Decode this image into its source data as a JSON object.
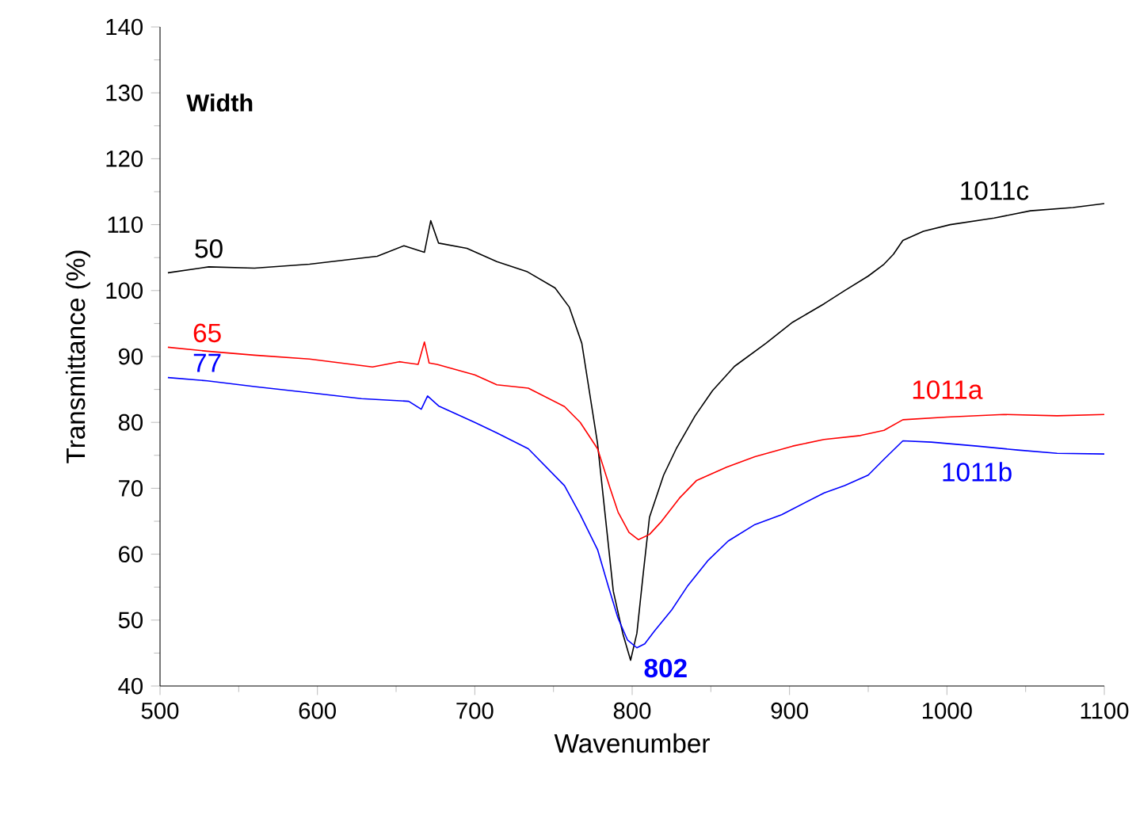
{
  "chart_data": {
    "type": "line",
    "xlabel": "Wavenumber",
    "ylabel": "Transmittance (%)",
    "xlim": [
      500,
      1100
    ],
    "xticks": [
      500,
      600,
      700,
      800,
      900,
      1000,
      1100
    ],
    "ylim": [
      40,
      140
    ],
    "yticks": [
      40,
      50,
      60,
      70,
      80,
      90,
      100,
      110,
      120,
      130,
      140
    ],
    "grid": false,
    "marker": "none",
    "line_style": "solid",
    "series": [
      {
        "name": "1011c",
        "color": "#000000",
        "x": [
          505,
          531,
          560,
          595,
          638,
          655,
          668,
          672,
          677,
          695,
          714,
          733,
          751,
          760,
          768,
          778,
          788,
          794,
          799,
          803,
          807,
          811,
          820,
          828,
          840,
          851,
          865,
          885,
          902,
          922,
          935,
          950,
          960,
          966,
          972,
          985,
          1002,
          1030,
          1053,
          1080,
          1100
        ],
        "values": [
          102.7,
          103.6,
          103.4,
          104,
          105.2,
          106.8,
          105.8,
          110.6,
          107.2,
          106.4,
          104.4,
          102.9,
          100.4,
          97.5,
          92,
          76.8,
          54.4,
          48,
          43.9,
          48,
          57,
          65.6,
          72,
          76,
          81,
          84.8,
          88.5,
          92,
          95.2,
          98,
          100,
          102.2,
          104,
          105.5,
          107.6,
          109,
          110,
          111,
          112.1,
          112.6,
          113.2
        ]
      },
      {
        "name": "1011a",
        "color": "#ff0000",
        "x": [
          505,
          530,
          560,
          595,
          635,
          652,
          664,
          668,
          671,
          676,
          700,
          714,
          734,
          757,
          767,
          778,
          786,
          791,
          798,
          804,
          811,
          818,
          830,
          841,
          860,
          878,
          902,
          922,
          945,
          960,
          972,
          1000,
          1036,
          1070,
          1100
        ],
        "values": [
          91.4,
          90.8,
          90.2,
          89.6,
          88.4,
          89.2,
          88.8,
          92.2,
          89,
          88.8,
          87.2,
          85.7,
          85.2,
          82.4,
          80,
          76,
          70,
          66.4,
          63.3,
          62.2,
          63,
          64.8,
          68.5,
          71.2,
          73.2,
          74.8,
          76.4,
          77.4,
          78,
          78.8,
          80.4,
          80.8,
          81.2,
          81,
          81.2
        ]
      },
      {
        "name": "1011b",
        "color": "#0000ff",
        "x": [
          505,
          530,
          561,
          595,
          628,
          658,
          666,
          670,
          677,
          700,
          714,
          734,
          757,
          767,
          778,
          785,
          791,
          797,
          803,
          808,
          814,
          825,
          835,
          848,
          861,
          878,
          895,
          922,
          935,
          950,
          960,
          972,
          990,
          1019,
          1045,
          1070,
          1100
        ],
        "values": [
          86.8,
          86.3,
          85.4,
          84.5,
          83.6,
          83.2,
          82,
          84,
          82.5,
          80,
          78.4,
          76,
          70.4,
          66,
          60.7,
          55,
          50.3,
          47,
          45.8,
          46.4,
          48.3,
          51.5,
          55.1,
          59,
          62,
          64.5,
          66,
          69.3,
          70.4,
          72,
          74.4,
          77.2,
          77,
          76.4,
          75.8,
          75.3,
          75.2
        ]
      }
    ],
    "annotations": [
      "Width",
      {
        "text": "50",
        "x": 531,
        "y": 103.6
      },
      {
        "text": "65",
        "x": 530,
        "y": 90.8
      },
      {
        "text": "77",
        "x": 530,
        "y": 86.3
      },
      {
        "text": "802",
        "x": 803,
        "y": 45.8
      }
    ]
  }
}
